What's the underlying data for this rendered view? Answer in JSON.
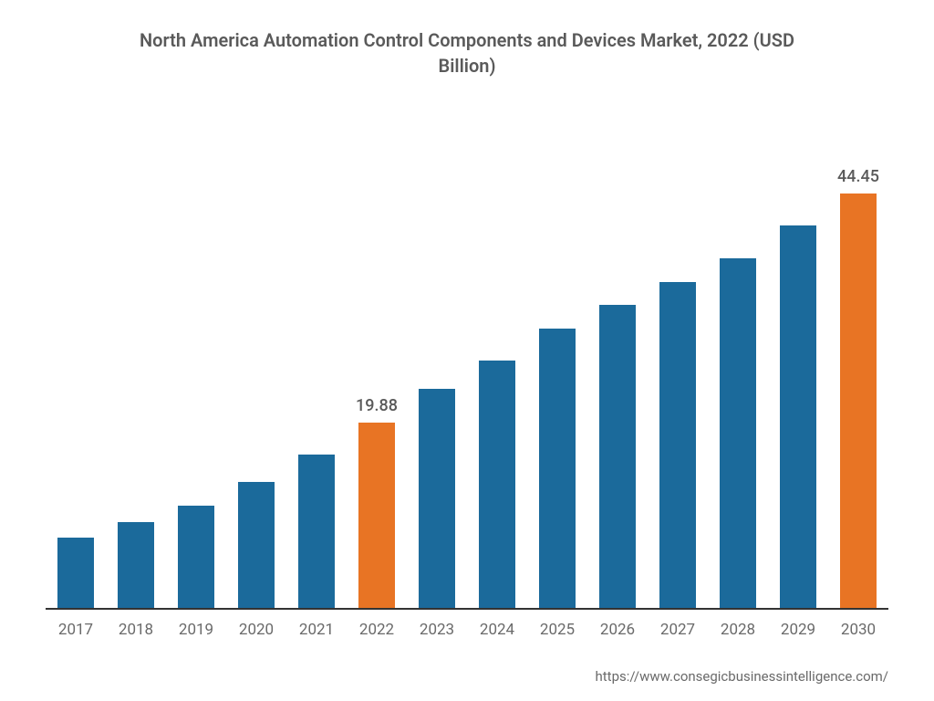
{
  "chart": {
    "type": "bar",
    "title": "North America Automation Control Components and Devices Market, 2022 (USD Billion)",
    "title_fontsize": 20,
    "title_color": "#5a5a5a",
    "categories": [
      "2017",
      "2018",
      "2019",
      "2020",
      "2021",
      "2022",
      "2023",
      "2024",
      "2025",
      "2026",
      "2027",
      "2028",
      "2029",
      "2030"
    ],
    "values": [
      7.5,
      9.2,
      11.0,
      13.5,
      16.5,
      19.88,
      23.5,
      26.5,
      30.0,
      32.5,
      35.0,
      37.5,
      41.0,
      44.45
    ],
    "bar_colors": [
      "#1b6a9b",
      "#1b6a9b",
      "#1b6a9b",
      "#1b6a9b",
      "#1b6a9b",
      "#e87424",
      "#1b6a9b",
      "#1b6a9b",
      "#1b6a9b",
      "#1b6a9b",
      "#1b6a9b",
      "#1b6a9b",
      "#1b6a9b",
      "#e87424"
    ],
    "show_label": [
      false,
      false,
      false,
      false,
      false,
      true,
      false,
      false,
      false,
      false,
      false,
      false,
      false,
      true
    ],
    "value_labels": [
      "",
      "",
      "",
      "",
      "",
      "19.88",
      "",
      "",
      "",
      "",
      "",
      "",
      "",
      "44.45"
    ],
    "ylim": [
      0,
      48
    ],
    "bar_width_ratio": 0.6,
    "background_color": "#ffffff",
    "axis_color": "#333333",
    "x_label_color": "#6a6a6a",
    "x_label_fontsize": 17,
    "value_label_fontsize": 18,
    "value_label_color": "#5a5a5a"
  },
  "source": {
    "text": "https://www.consegicbusinessintelligence.com/",
    "fontsize": 15,
    "color": "#6a6a6a"
  }
}
